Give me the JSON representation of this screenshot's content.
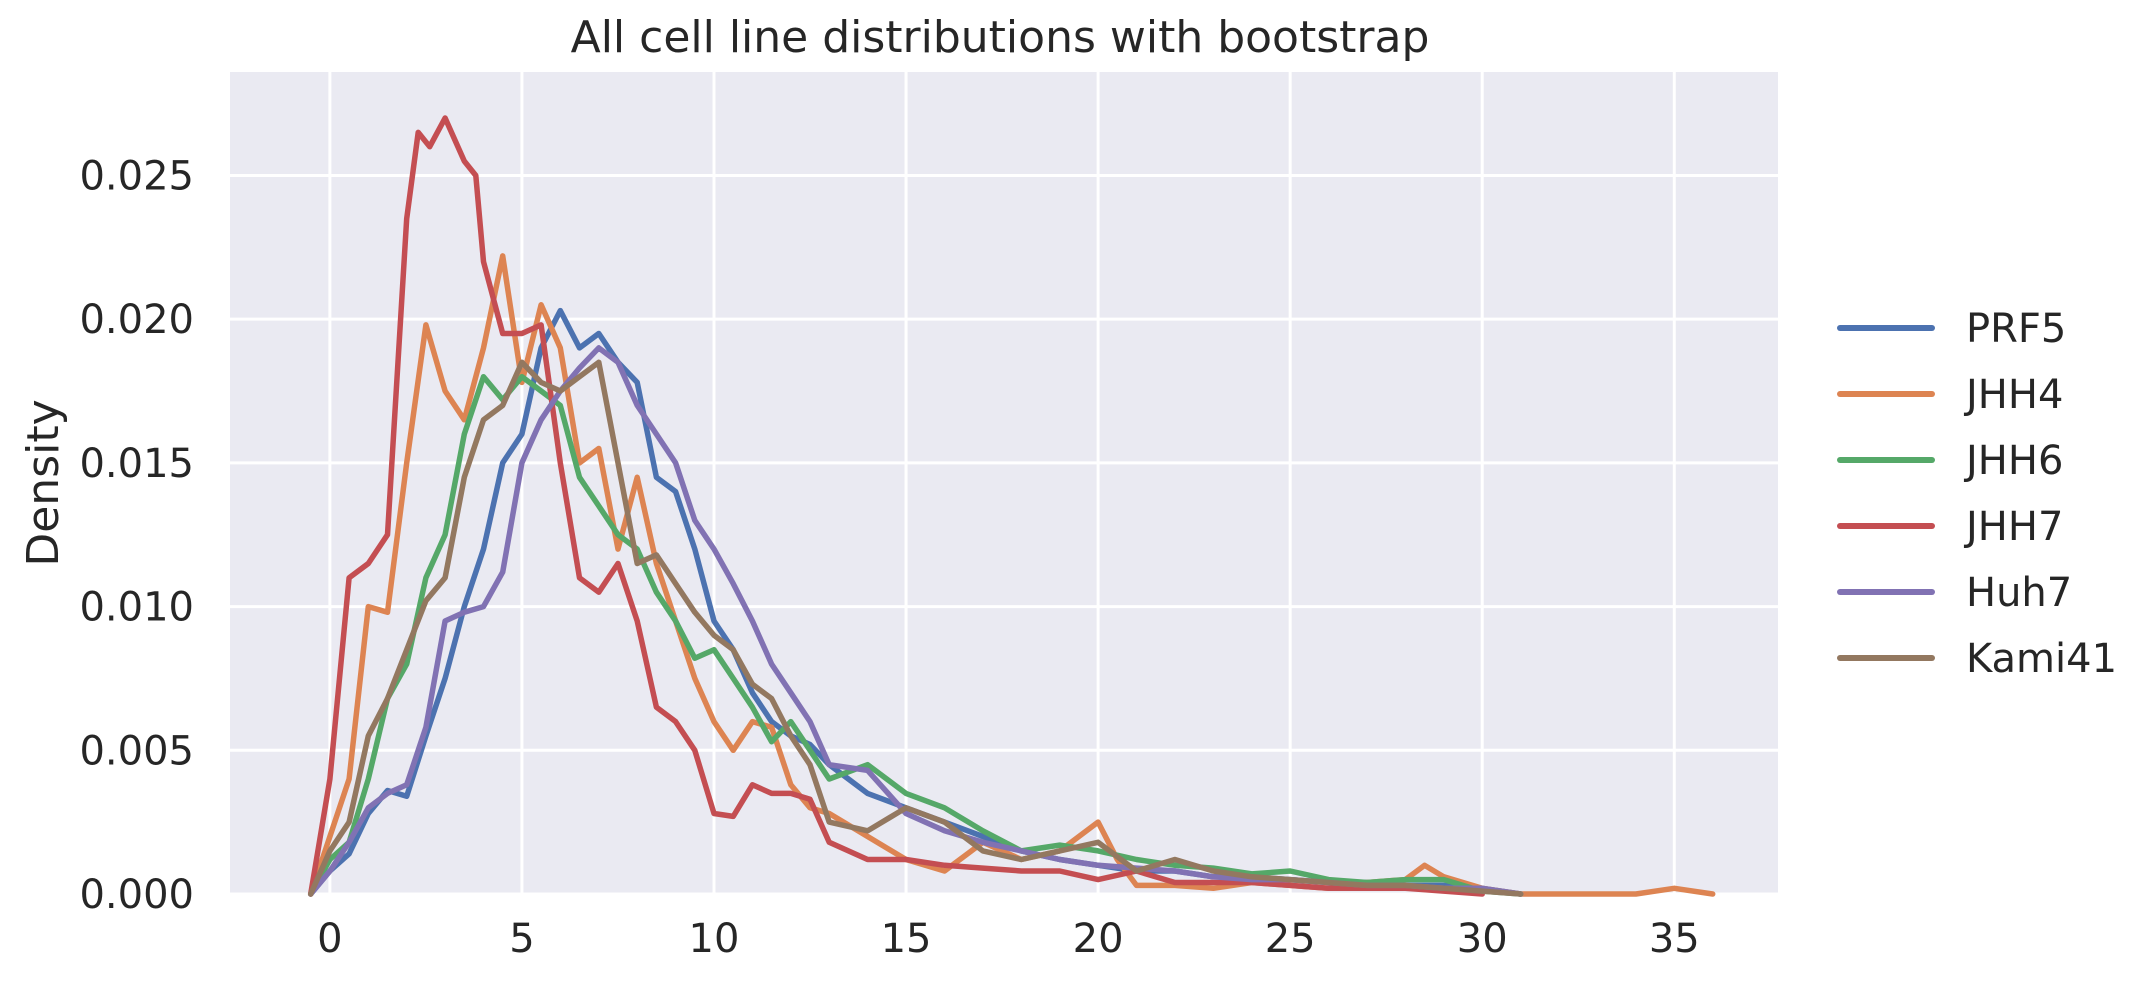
{
  "chart_data": {
    "type": "line",
    "title": "All cell line distributions with bootstrap",
    "xlabel": "",
    "ylabel": "Density",
    "xlim": [
      -2.6,
      37.7
    ],
    "ylim": [
      0,
      0.0286
    ],
    "xticks": [
      0,
      5,
      10,
      15,
      20,
      25,
      30,
      35
    ],
    "xtick_labels": [
      "0",
      "5",
      "10",
      "15",
      "20",
      "25",
      "30",
      "35"
    ],
    "yticks": [
      0.0,
      0.005,
      0.01,
      0.015,
      0.02,
      0.025
    ],
    "ytick_labels": [
      "0.000",
      "0.005",
      "0.010",
      "0.015",
      "0.020",
      "0.025"
    ],
    "grid": true,
    "legend_position": "right",
    "background": "#EAEAF2",
    "series": [
      {
        "name": "PRF5",
        "color": "#4C72B0",
        "points": [
          [
            -0.5,
            0
          ],
          [
            0,
            0.0008
          ],
          [
            0.5,
            0.0014
          ],
          [
            1,
            0.0028
          ],
          [
            1.5,
            0.0036
          ],
          [
            2,
            0.0034
          ],
          [
            2.5,
            0.0055
          ],
          [
            3,
            0.0075
          ],
          [
            3.5,
            0.01
          ],
          [
            4,
            0.012
          ],
          [
            4.5,
            0.015
          ],
          [
            5,
            0.016
          ],
          [
            5.5,
            0.019
          ],
          [
            6,
            0.0203
          ],
          [
            6.5,
            0.019
          ],
          [
            7,
            0.0195
          ],
          [
            7.5,
            0.0185
          ],
          [
            8,
            0.0178
          ],
          [
            8.5,
            0.0145
          ],
          [
            9,
            0.014
          ],
          [
            9.5,
            0.012
          ],
          [
            10,
            0.0095
          ],
          [
            10.5,
            0.0085
          ],
          [
            11,
            0.007
          ],
          [
            11.5,
            0.006
          ],
          [
            12,
            0.0055
          ],
          [
            12.5,
            0.0052
          ],
          [
            13,
            0.0045
          ],
          [
            13.5,
            0.004
          ],
          [
            14,
            0.0035
          ],
          [
            15,
            0.003
          ],
          [
            16,
            0.0025
          ],
          [
            17,
            0.002
          ],
          [
            18,
            0.0015
          ],
          [
            19,
            0.0012
          ],
          [
            20,
            0.001
          ],
          [
            21,
            0.0008
          ],
          [
            22,
            0.0008
          ],
          [
            23,
            0.0006
          ],
          [
            24,
            0.0006
          ],
          [
            25,
            0.0005
          ],
          [
            26,
            0.0004
          ],
          [
            27,
            0.0004
          ],
          [
            28,
            0.0003
          ],
          [
            29,
            0.0003
          ],
          [
            30,
            0.0002
          ],
          [
            31,
            0
          ]
        ]
      },
      {
        "name": "JHH4",
        "color": "#DD8452",
        "points": [
          [
            -0.5,
            0
          ],
          [
            0,
            0.002
          ],
          [
            0.5,
            0.004
          ],
          [
            1,
            0.01
          ],
          [
            1.5,
            0.0098
          ],
          [
            2,
            0.015
          ],
          [
            2.5,
            0.0198
          ],
          [
            3,
            0.0175
          ],
          [
            3.5,
            0.0165
          ],
          [
            4,
            0.019
          ],
          [
            4.5,
            0.0222
          ],
          [
            5,
            0.0178
          ],
          [
            5.5,
            0.0205
          ],
          [
            6,
            0.019
          ],
          [
            6.5,
            0.015
          ],
          [
            7,
            0.0155
          ],
          [
            7.5,
            0.012
          ],
          [
            8,
            0.0145
          ],
          [
            8.5,
            0.0115
          ],
          [
            9,
            0.0095
          ],
          [
            9.5,
            0.0075
          ],
          [
            10,
            0.006
          ],
          [
            10.5,
            0.005
          ],
          [
            11,
            0.006
          ],
          [
            11.5,
            0.0058
          ],
          [
            12,
            0.0038
          ],
          [
            12.5,
            0.003
          ],
          [
            13,
            0.0028
          ],
          [
            14,
            0.002
          ],
          [
            15,
            0.0012
          ],
          [
            16,
            0.0008
          ],
          [
            17,
            0.0018
          ],
          [
            18,
            0.0012
          ],
          [
            19,
            0.0015
          ],
          [
            20,
            0.0025
          ],
          [
            20.5,
            0.0012
          ],
          [
            21,
            0.0003
          ],
          [
            22,
            0.0003
          ],
          [
            23,
            0.0002
          ],
          [
            24,
            0.0004
          ],
          [
            25,
            0.0003
          ],
          [
            26,
            0.0002
          ],
          [
            27,
            0.0004
          ],
          [
            28,
            0.0005
          ],
          [
            28.5,
            0.001
          ],
          [
            29,
            0.0006
          ],
          [
            30,
            0.0002
          ],
          [
            31,
            0
          ],
          [
            34,
            0
          ],
          [
            35,
            0.0002
          ],
          [
            36,
            0
          ]
        ]
      },
      {
        "name": "JHH6",
        "color": "#55A868",
        "points": [
          [
            -0.5,
            0
          ],
          [
            0,
            0.0012
          ],
          [
            0.5,
            0.0018
          ],
          [
            1,
            0.004
          ],
          [
            1.5,
            0.0068
          ],
          [
            2,
            0.008
          ],
          [
            2.5,
            0.011
          ],
          [
            3,
            0.0125
          ],
          [
            3.5,
            0.016
          ],
          [
            4,
            0.018
          ],
          [
            4.5,
            0.0172
          ],
          [
            5,
            0.018
          ],
          [
            5.5,
            0.0175
          ],
          [
            6,
            0.017
          ],
          [
            6.5,
            0.0145
          ],
          [
            7,
            0.0135
          ],
          [
            7.5,
            0.0125
          ],
          [
            8,
            0.012
          ],
          [
            8.5,
            0.0105
          ],
          [
            9,
            0.0095
          ],
          [
            9.5,
            0.0082
          ],
          [
            10,
            0.0085
          ],
          [
            10.5,
            0.0075
          ],
          [
            11,
            0.0065
          ],
          [
            11.5,
            0.0053
          ],
          [
            12,
            0.006
          ],
          [
            13,
            0.004
          ],
          [
            14,
            0.0045
          ],
          [
            15,
            0.0035
          ],
          [
            16,
            0.003
          ],
          [
            17,
            0.0022
          ],
          [
            18,
            0.0015
          ],
          [
            19,
            0.0017
          ],
          [
            20,
            0.0015
          ],
          [
            21,
            0.0012
          ],
          [
            22,
            0.001
          ],
          [
            23,
            0.0009
          ],
          [
            24,
            0.0007
          ],
          [
            25,
            0.0008
          ],
          [
            26,
            0.0005
          ],
          [
            27,
            0.0004
          ],
          [
            28,
            0.0005
          ],
          [
            29,
            0.0005
          ],
          [
            30,
            0.0001
          ],
          [
            31,
            0
          ]
        ]
      },
      {
        "name": "JHH7",
        "color": "#C44E52",
        "points": [
          [
            -0.5,
            0
          ],
          [
            0,
            0.004
          ],
          [
            0.5,
            0.011
          ],
          [
            1,
            0.0115
          ],
          [
            1.5,
            0.0125
          ],
          [
            2,
            0.0235
          ],
          [
            2.3,
            0.0265
          ],
          [
            2.6,
            0.026
          ],
          [
            3,
            0.027
          ],
          [
            3.5,
            0.0255
          ],
          [
            3.8,
            0.025
          ],
          [
            4,
            0.022
          ],
          [
            4.5,
            0.0195
          ],
          [
            5,
            0.0195
          ],
          [
            5.5,
            0.0198
          ],
          [
            6,
            0.015
          ],
          [
            6.5,
            0.011
          ],
          [
            7,
            0.0105
          ],
          [
            7.5,
            0.0115
          ],
          [
            8,
            0.0095
          ],
          [
            8.5,
            0.0065
          ],
          [
            9,
            0.006
          ],
          [
            9.5,
            0.005
          ],
          [
            10,
            0.0028
          ],
          [
            10.5,
            0.0027
          ],
          [
            11,
            0.0038
          ],
          [
            11.5,
            0.0035
          ],
          [
            12,
            0.0035
          ],
          [
            12.5,
            0.0033
          ],
          [
            13,
            0.0018
          ],
          [
            14,
            0.0012
          ],
          [
            15,
            0.0012
          ],
          [
            16,
            0.001
          ],
          [
            17,
            0.0009
          ],
          [
            18,
            0.0008
          ],
          [
            19,
            0.0008
          ],
          [
            20,
            0.0005
          ],
          [
            21,
            0.0008
          ],
          [
            22,
            0.0004
          ],
          [
            23,
            0.0004
          ],
          [
            24,
            0.0004
          ],
          [
            25,
            0.0003
          ],
          [
            26,
            0.0002
          ],
          [
            27,
            0.0002
          ],
          [
            28,
            0.0002
          ],
          [
            29,
            0.0001
          ],
          [
            30,
            0
          ]
        ]
      },
      {
        "name": "Huh7",
        "color": "#8172B3",
        "points": [
          [
            -0.5,
            0
          ],
          [
            0,
            0.0008
          ],
          [
            0.5,
            0.0018
          ],
          [
            1,
            0.003
          ],
          [
            1.5,
            0.0035
          ],
          [
            2,
            0.0038
          ],
          [
            2.5,
            0.0058
          ],
          [
            3,
            0.0095
          ],
          [
            3.5,
            0.0098
          ],
          [
            4,
            0.01
          ],
          [
            4.5,
            0.0112
          ],
          [
            5,
            0.015
          ],
          [
            5.5,
            0.0165
          ],
          [
            6,
            0.0175
          ],
          [
            6.5,
            0.0183
          ],
          [
            7,
            0.019
          ],
          [
            7.5,
            0.0185
          ],
          [
            8,
            0.017
          ],
          [
            8.5,
            0.016
          ],
          [
            9,
            0.015
          ],
          [
            9.5,
            0.013
          ],
          [
            10,
            0.012
          ],
          [
            10.5,
            0.0108
          ],
          [
            11,
            0.0095
          ],
          [
            11.5,
            0.008
          ],
          [
            12,
            0.007
          ],
          [
            12.5,
            0.006
          ],
          [
            13,
            0.0045
          ],
          [
            14,
            0.0043
          ],
          [
            15,
            0.0028
          ],
          [
            16,
            0.0022
          ],
          [
            17,
            0.0018
          ],
          [
            18,
            0.0015
          ],
          [
            19,
            0.0012
          ],
          [
            20,
            0.001
          ],
          [
            21,
            0.0009
          ],
          [
            22,
            0.0008
          ],
          [
            23,
            0.0006
          ],
          [
            24,
            0.0005
          ],
          [
            25,
            0.0005
          ],
          [
            26,
            0.0004
          ],
          [
            27,
            0.0003
          ],
          [
            28,
            0.0003
          ],
          [
            29,
            0.0002
          ],
          [
            30,
            0.0002
          ],
          [
            31,
            0
          ]
        ]
      },
      {
        "name": "Kami41",
        "color": "#937860",
        "points": [
          [
            -0.5,
            0
          ],
          [
            0,
            0.0015
          ],
          [
            0.5,
            0.0025
          ],
          [
            1,
            0.0055
          ],
          [
            1.5,
            0.0068
          ],
          [
            2,
            0.0085
          ],
          [
            2.5,
            0.0102
          ],
          [
            3,
            0.011
          ],
          [
            3.5,
            0.0145
          ],
          [
            4,
            0.0165
          ],
          [
            4.5,
            0.017
          ],
          [
            5,
            0.0185
          ],
          [
            5.5,
            0.0178
          ],
          [
            6,
            0.0175
          ],
          [
            6.5,
            0.018
          ],
          [
            7,
            0.0185
          ],
          [
            7.5,
            0.015
          ],
          [
            8,
            0.0115
          ],
          [
            8.5,
            0.0118
          ],
          [
            9,
            0.0108
          ],
          [
            9.5,
            0.0098
          ],
          [
            10,
            0.009
          ],
          [
            10.5,
            0.0085
          ],
          [
            11,
            0.0073
          ],
          [
            11.5,
            0.0068
          ],
          [
            12,
            0.0055
          ],
          [
            12.5,
            0.0045
          ],
          [
            13,
            0.0025
          ],
          [
            14,
            0.0022
          ],
          [
            15,
            0.003
          ],
          [
            16,
            0.0025
          ],
          [
            17,
            0.0015
          ],
          [
            18,
            0.0012
          ],
          [
            19,
            0.0015
          ],
          [
            20,
            0.0018
          ],
          [
            21,
            0.0008
          ],
          [
            22,
            0.0012
          ],
          [
            23,
            0.0008
          ],
          [
            24,
            0.0006
          ],
          [
            25,
            0.0005
          ],
          [
            26,
            0.0004
          ],
          [
            27,
            0.0003
          ],
          [
            28,
            0.0003
          ],
          [
            29,
            0.0002
          ],
          [
            30,
            0.0001
          ],
          [
            31,
            0
          ]
        ]
      }
    ]
  }
}
